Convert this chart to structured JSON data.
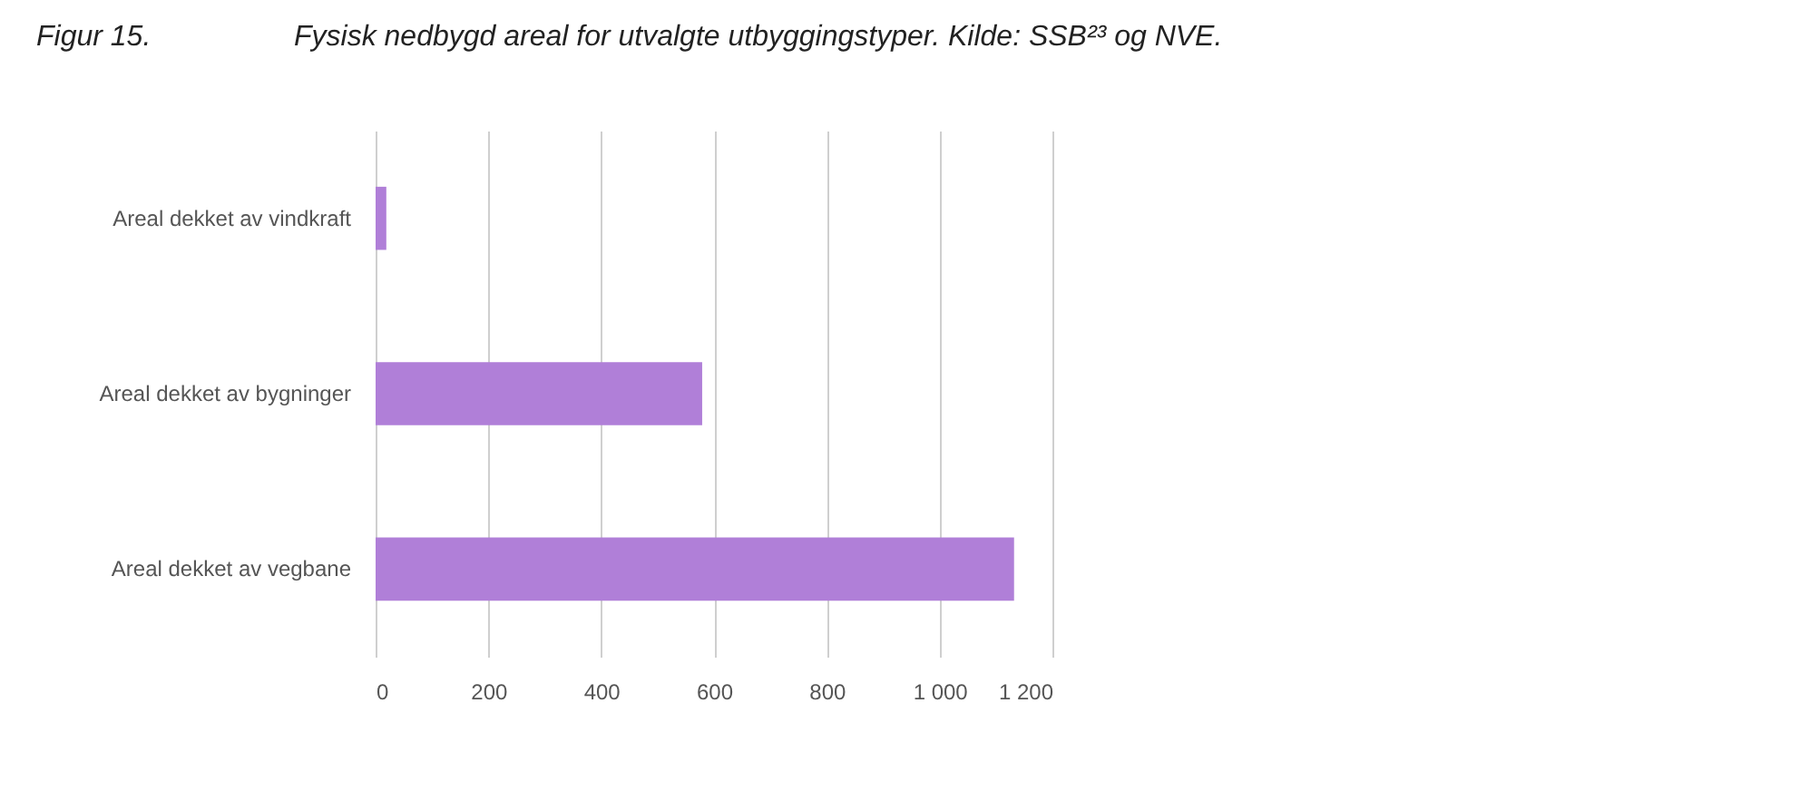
{
  "chart_data": {
    "type": "bar",
    "orientation": "horizontal",
    "title": "Fysisk nedbygd areal for utvalgte utbyggingstyper. Kilde: SSB²³ og NVE.",
    "annotations": [
      "Figur 15."
    ],
    "categories": [
      "Areal dekket av vindkraft",
      "Areal dekket av bygninger",
      "Areal dekket av vegbane"
    ],
    "values": [
      19,
      579,
      1132
    ],
    "color": "#b07fd8",
    "xlim": [
      0,
      1200
    ],
    "xticks": [
      0,
      200,
      400,
      600,
      800,
      {
        "value": 1000,
        "label": "1 000"
      },
      {
        "value": 1200,
        "label": "1 200"
      }
    ],
    "grid": "x"
  }
}
